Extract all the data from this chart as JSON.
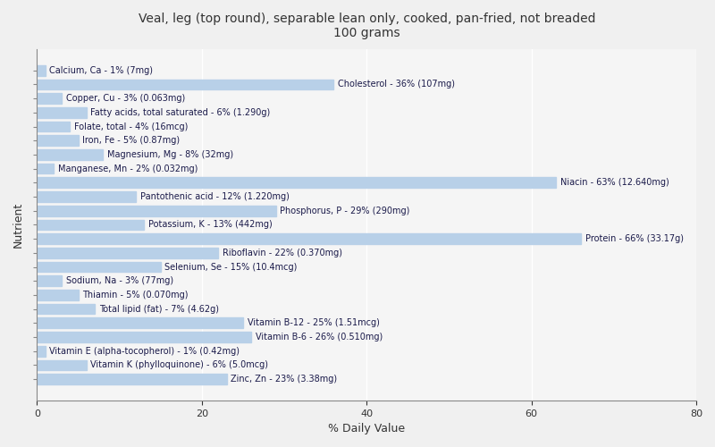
{
  "title": "Veal, leg (top round), separable lean only, cooked, pan-fried, not breaded\n100 grams",
  "xlabel": "% Daily Value",
  "ylabel": "Nutrient",
  "xlim": [
    0,
    80
  ],
  "background_color": "#f0f0f0",
  "plot_bg_color": "#f5f5f5",
  "bar_color": "#b8d0e8",
  "text_color": "#1a1a4a",
  "nutrients": [
    {
      "label": "Calcium, Ca - 1% (7mg)",
      "value": 1
    },
    {
      "label": "Cholesterol - 36% (107mg)",
      "value": 36
    },
    {
      "label": "Copper, Cu - 3% (0.063mg)",
      "value": 3
    },
    {
      "label": "Fatty acids, total saturated - 6% (1.290g)",
      "value": 6
    },
    {
      "label": "Folate, total - 4% (16mcg)",
      "value": 4
    },
    {
      "label": "Iron, Fe - 5% (0.87mg)",
      "value": 5
    },
    {
      "label": "Magnesium, Mg - 8% (32mg)",
      "value": 8
    },
    {
      "label": "Manganese, Mn - 2% (0.032mg)",
      "value": 2
    },
    {
      "label": "Niacin - 63% (12.640mg)",
      "value": 63
    },
    {
      "label": "Pantothenic acid - 12% (1.220mg)",
      "value": 12
    },
    {
      "label": "Phosphorus, P - 29% (290mg)",
      "value": 29
    },
    {
      "label": "Potassium, K - 13% (442mg)",
      "value": 13
    },
    {
      "label": "Protein - 66% (33.17g)",
      "value": 66
    },
    {
      "label": "Riboflavin - 22% (0.370mg)",
      "value": 22
    },
    {
      "label": "Selenium, Se - 15% (10.4mcg)",
      "value": 15
    },
    {
      "label": "Sodium, Na - 3% (77mg)",
      "value": 3
    },
    {
      "label": "Thiamin - 5% (0.070mg)",
      "value": 5
    },
    {
      "label": "Total lipid (fat) - 7% (4.62g)",
      "value": 7
    },
    {
      "label": "Vitamin B-12 - 25% (1.51mcg)",
      "value": 25
    },
    {
      "label": "Vitamin B-6 - 26% (0.510mg)",
      "value": 26
    },
    {
      "label": "Vitamin E (alpha-tocopherol) - 1% (0.42mg)",
      "value": 1
    },
    {
      "label": "Vitamin K (phylloquinone) - 6% (5.0mcg)",
      "value": 6
    },
    {
      "label": "Zinc, Zn - 23% (3.38mg)",
      "value": 23
    }
  ]
}
